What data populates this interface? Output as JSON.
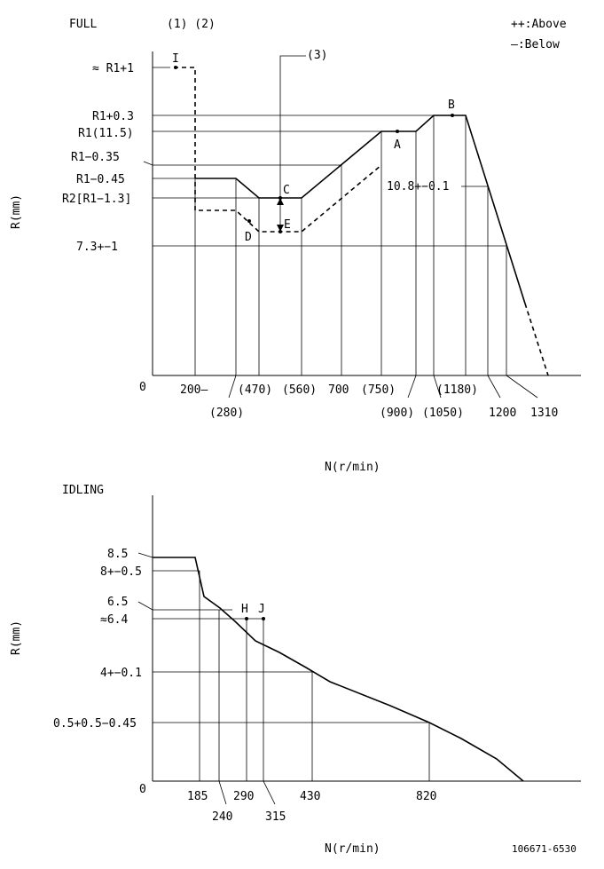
{
  "full": {
    "title": "FULL",
    "notes": "(1) (2)",
    "legend": {
      "above": "++:Above",
      "below": "—:Below"
    },
    "note3": "(3)",
    "ylabel": "R(mm)",
    "xlabel": "N(r/min)",
    "zero": "0",
    "y_labels": [
      "≈ R1+1",
      "R1+0.3",
      "R1(11.5)",
      "R1−0.35",
      "R1−0.45",
      "R2[R1−1.3]",
      "7.3+−1"
    ],
    "x_labels_top": [
      "200—",
      "(470)",
      "(560)",
      "700",
      "(750)"
    ],
    "x_labels_bottom": [
      "(280)",
      "(900)",
      "(1050)",
      "1200",
      "1310"
    ],
    "x_label_1180": "(1180)",
    "points": {
      "I": "I",
      "A": "A",
      "B": "B",
      "C": "C",
      "D": "D",
      "E": "E"
    },
    "right_label": "10.8+−0.1"
  },
  "idling": {
    "title": "IDLING",
    "ylabel": "R(mm)",
    "xlabel": "N(r/min)",
    "zero": "0",
    "y_labels": [
      "8.5",
      "8+−0.5",
      "6.5",
      "≈6.4",
      "4+−0.1",
      "0.5+0.5−0.45"
    ],
    "x_labels_top": [
      "185",
      "290",
      "430",
      "820"
    ],
    "x_labels_bottom": [
      "240",
      "315"
    ],
    "points": {
      "H": "H",
      "J": "J"
    }
  },
  "doc_id": "106671-6530"
}
